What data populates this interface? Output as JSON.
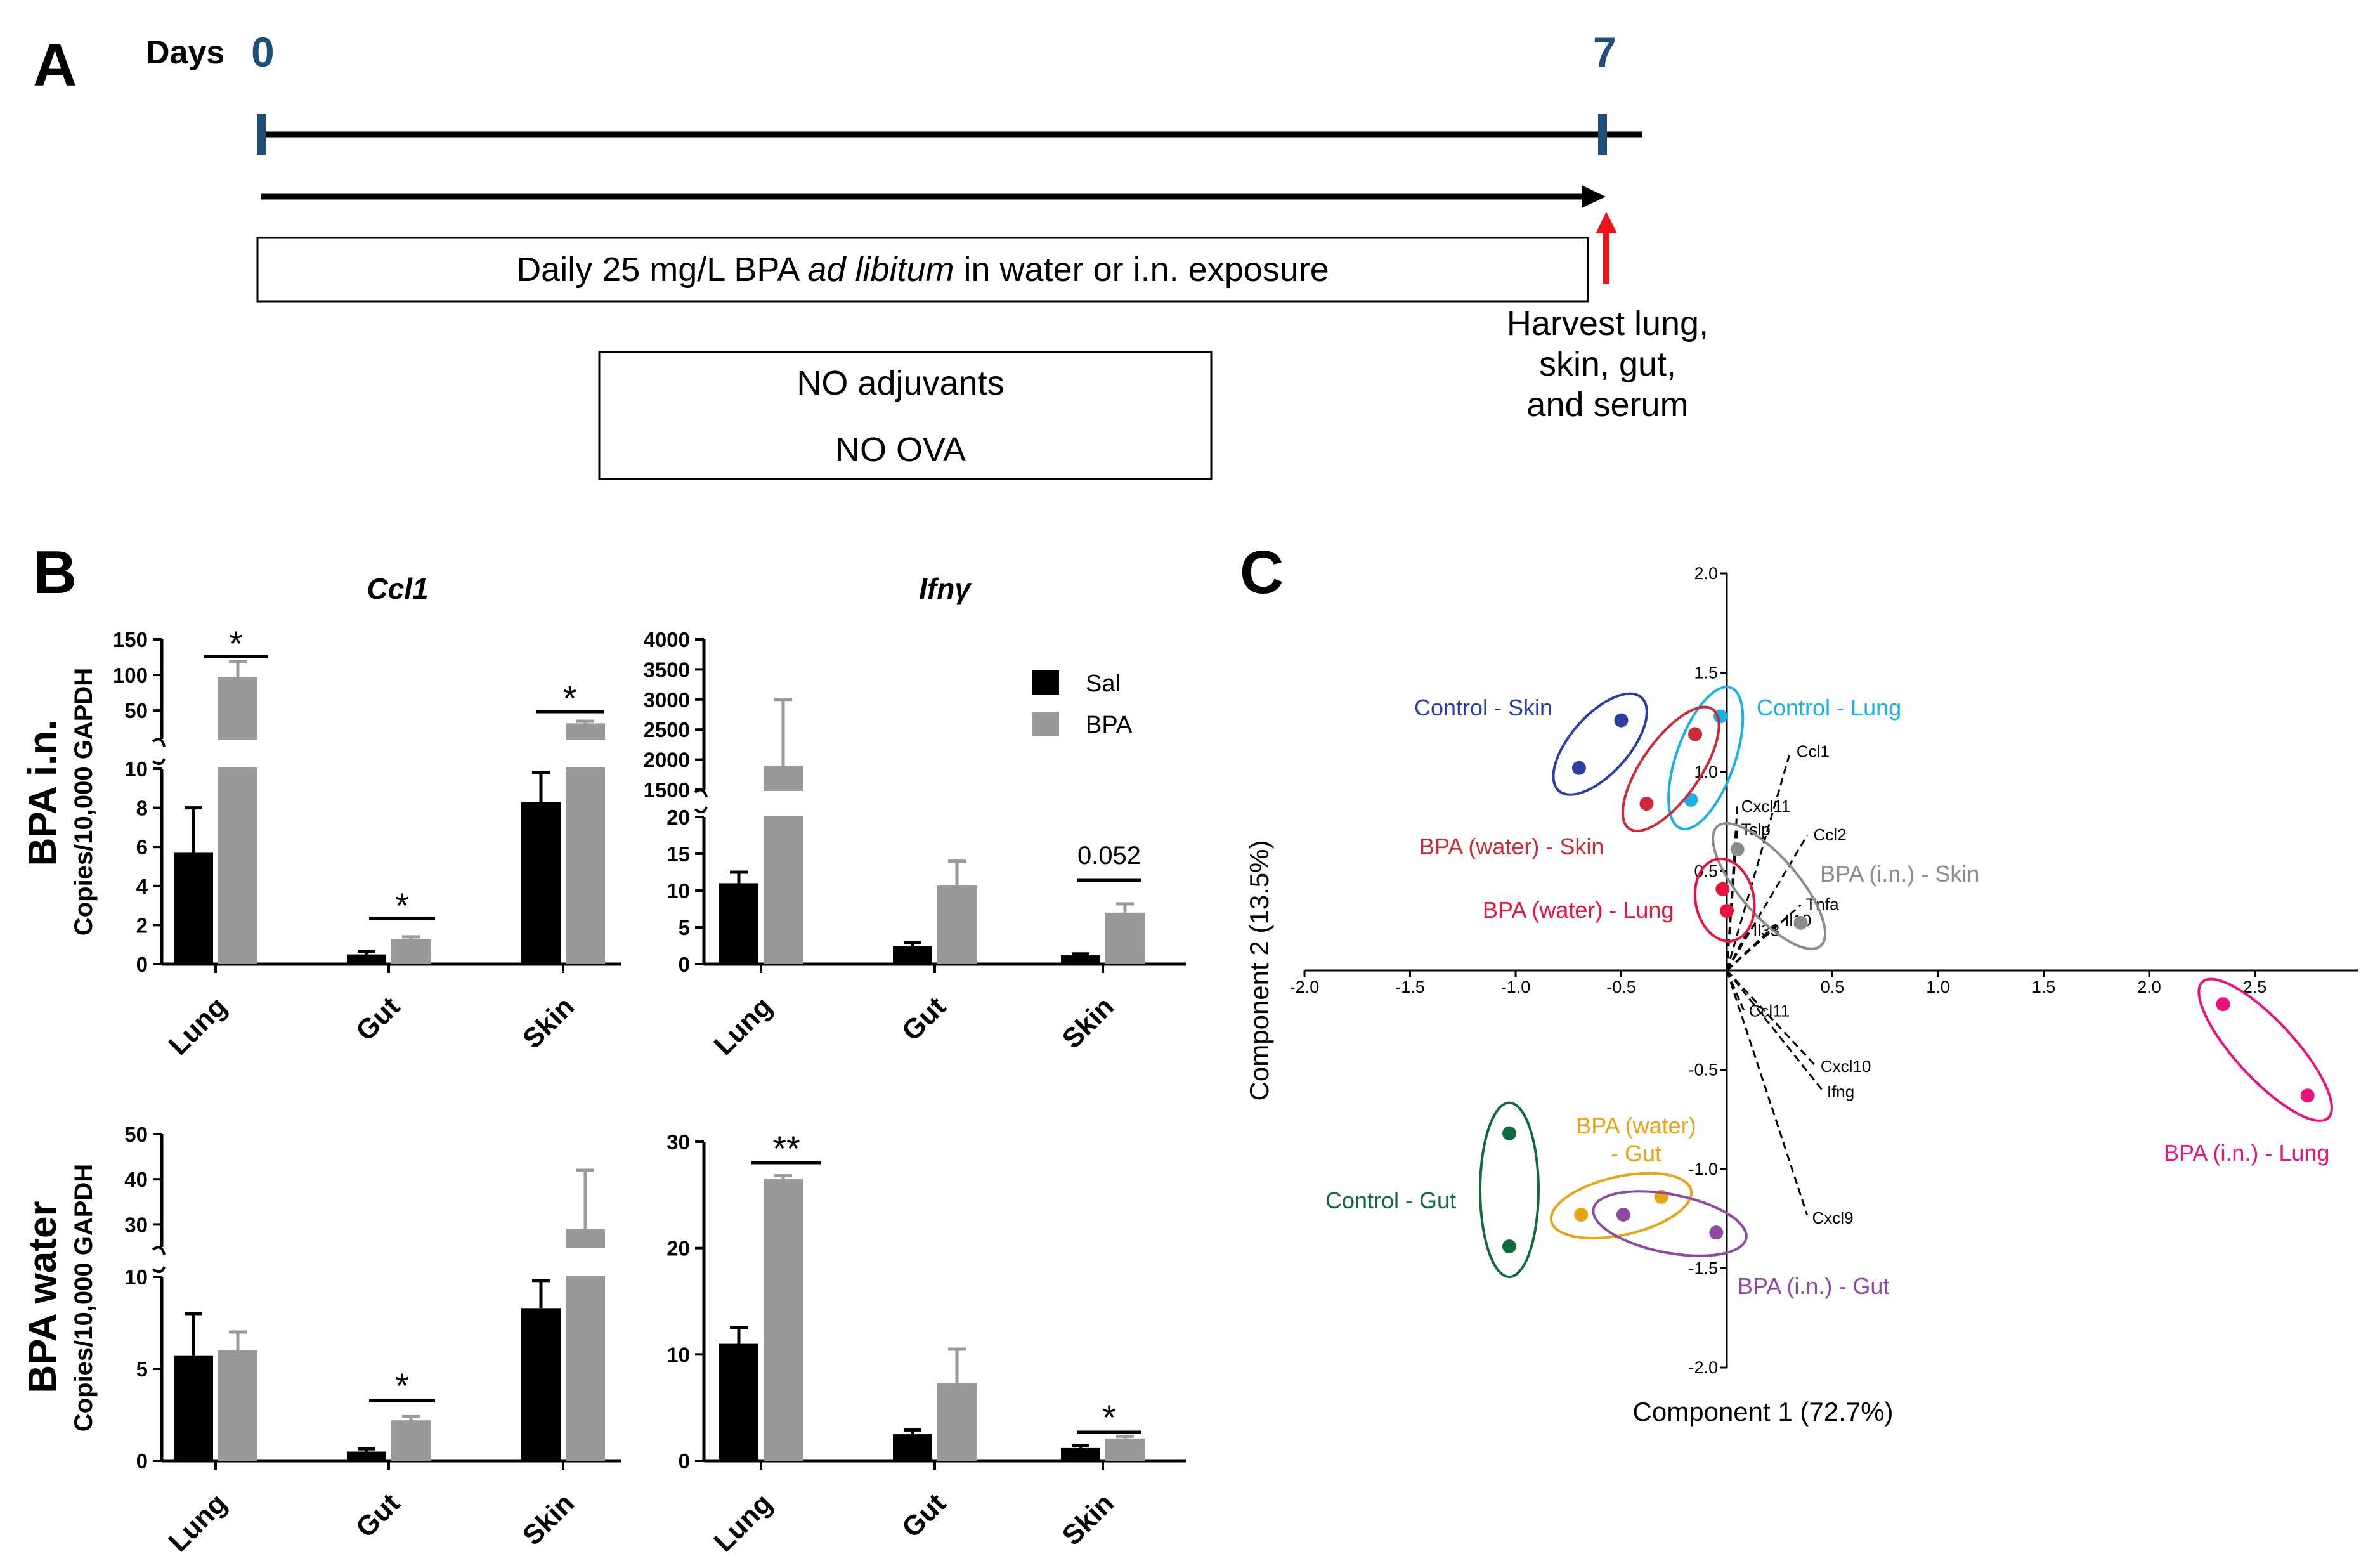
{
  "colors": {
    "sal": "#000000",
    "bpa": "#999999",
    "day_blue": "#1f4e79",
    "red_arrow": "#e8141b",
    "control_skin": "#2d3ea3",
    "control_lung": "#1ab0e3",
    "water_skin": "#cc2a36",
    "water_lung": "#e8143c",
    "in_skin": "#8c8c8c",
    "control_gut": "#0f6b3c",
    "water_gut": "#e8a317",
    "in_gut": "#8e4aa3",
    "in_lung": "#e8147a"
  },
  "panel_a": {
    "label": "A",
    "days_label": "Days",
    "day_start": "0",
    "day_end": "7",
    "treatment_text_1": "Daily 25 mg/L BPA ",
    "treatment_text_italic": "ad libitum",
    "treatment_text_2": " in water or i.n. exposure",
    "no_adjuvants": "NO adjuvants",
    "no_ova": "NO OVA",
    "harvest_lines": [
      "Harvest lung,",
      "skin, gut,",
      "and serum"
    ]
  },
  "panel_b": {
    "label": "B",
    "row_labels": [
      "BPA i.n.",
      "BPA water"
    ],
    "ylabel": "Copies/10,000 GAPDH",
    "legend": [
      "Sal",
      "BPA"
    ],
    "gene_titles": [
      "Ccl1",
      "Ifnγ"
    ]
  },
  "panel_c": {
    "label": "C",
    "xlabel": "Component 1 (72.7%)",
    "ylabel": "Component 2 (13.5%)",
    "group_labels": [
      "Control - Skin",
      "Control - Lung",
      "BPA (water) - Skin",
      "BPA (i.n.) - Skin",
      "BPA (water) - Lung",
      "Control - Gut",
      "BPA (i.n.) - Gut",
      "BPA (i.n.) - Lung"
    ],
    "water_gut_label": [
      "BPA (water)",
      "- Gut"
    ]
  },
  "chart_data": [
    {
      "type": "bar",
      "id": "ccl1_in",
      "title": "Ccl1",
      "row": "BPA i.n.",
      "categories": [
        "Lung",
        "Gut",
        "Skin"
      ],
      "series": [
        {
          "name": "Sal",
          "values": [
            5.7,
            0.5,
            8.3
          ],
          "errors": [
            2.3,
            0.15,
            1.5
          ]
        },
        {
          "name": "BPA",
          "values": [
            97,
            1.3,
            32
          ],
          "errors": [
            22,
            0.1,
            3
          ]
        }
      ],
      "broken_axis": {
        "lower": [
          0,
          10
        ],
        "upper": [
          10,
          150
        ]
      },
      "yticks_lower": [
        "0",
        "2",
        "4",
        "6",
        "8",
        "10"
      ],
      "yticks_upper": [
        "50",
        "100",
        "150"
      ],
      "annotations": [
        "*",
        "*",
        "*"
      ]
    },
    {
      "type": "bar",
      "id": "ifng_in",
      "title": "Ifnγ",
      "row": "BPA i.n.",
      "categories": [
        "Lung",
        "Gut",
        "Skin"
      ],
      "series": [
        {
          "name": "Sal",
          "values": [
            11,
            2.5,
            1.2
          ],
          "errors": [
            1.5,
            0.4,
            0.2
          ]
        },
        {
          "name": "BPA",
          "values": [
            1900,
            10.7,
            7
          ],
          "errors": [
            1100,
            3.3,
            1.2
          ]
        }
      ],
      "broken_axis": {
        "lower": [
          0,
          20
        ],
        "upper": [
          1500,
          4000
        ]
      },
      "yticks_lower": [
        "0",
        "5",
        "10",
        "15",
        "20"
      ],
      "yticks_upper": [
        "1500",
        "2000",
        "2500",
        "3000",
        "3500",
        "4000"
      ],
      "annotations": [
        "",
        "",
        "0.052"
      ]
    },
    {
      "type": "bar",
      "id": "ccl1_water",
      "title": "Ccl1",
      "row": "BPA water",
      "categories": [
        "Lung",
        "Gut",
        "Skin"
      ],
      "series": [
        {
          "name": "Sal",
          "values": [
            5.7,
            0.5,
            8.3
          ],
          "errors": [
            2.3,
            0.15,
            1.5
          ]
        },
        {
          "name": "BPA",
          "values": [
            6,
            2.2,
            29
          ],
          "errors": [
            1,
            0.2,
            13
          ]
        }
      ],
      "broken_axis": {
        "lower": [
          0,
          10
        ],
        "upper": [
          25,
          50
        ]
      },
      "yticks_lower": [
        "0",
        "5",
        "10"
      ],
      "yticks_upper": [
        "30",
        "40",
        "50"
      ],
      "annotations": [
        "",
        "*",
        ""
      ]
    },
    {
      "type": "bar",
      "id": "ifng_water",
      "title": "Ifnγ",
      "row": "BPA water",
      "categories": [
        "Lung",
        "Gut",
        "Skin"
      ],
      "series": [
        {
          "name": "Sal",
          "values": [
            11,
            2.5,
            1.2
          ],
          "errors": [
            1.5,
            0.4,
            0.2
          ]
        },
        {
          "name": "BPA",
          "values": [
            26.5,
            7.3,
            2.1
          ],
          "errors": [
            0.3,
            3.2,
            0.2
          ]
        }
      ],
      "ylim": [
        0,
        30
      ],
      "yticks": [
        "0",
        "10",
        "20",
        "30"
      ],
      "annotations": [
        "**",
        "",
        "*"
      ]
    },
    {
      "type": "scatter",
      "id": "pca_biplot",
      "xlabel": "Component 1 (72.7%)",
      "ylabel": "Component 2 (13.5%)",
      "xlim": [
        -2.0,
        3.0
      ],
      "ylim": [
        -2.0,
        2.0
      ],
      "xticks": [
        "-2.0",
        "-1.5",
        "-1.0",
        "-0.5",
        "0.5",
        "1.0",
        "1.5",
        "2.0",
        "2.5"
      ],
      "yticks": [
        "2.0",
        "1.5",
        "1.0",
        "0.5",
        "-0.5",
        "-1.0",
        "-1.5",
        "-2.0"
      ],
      "groups": [
        {
          "name": "Control - Skin",
          "color": "#2d3ea3",
          "points": [
            [
              -0.5,
              1.26
            ],
            [
              -0.7,
              1.02
            ]
          ]
        },
        {
          "name": "Control - Lung",
          "color": "#1ab0e3",
          "points": [
            [
              -0.03,
              1.28
            ],
            [
              -0.17,
              0.86
            ]
          ]
        },
        {
          "name": "BPA (water) - Skin",
          "color": "#cc2a36",
          "points": [
            [
              -0.15,
              1.19
            ],
            [
              -0.38,
              0.84
            ]
          ]
        },
        {
          "name": "BPA (i.n.) - Skin",
          "color": "#8c8c8c",
          "points": [
            [
              0.05,
              0.61
            ],
            [
              0.35,
              0.24
            ]
          ]
        },
        {
          "name": "BPA (water) - Lung",
          "color": "#e8143c",
          "points": [
            [
              -0.02,
              0.41
            ],
            [
              0.0,
              0.3
            ]
          ]
        },
        {
          "name": "Control - Gut",
          "color": "#0f6b3c",
          "points": [
            [
              -1.03,
              -0.82
            ],
            [
              -1.03,
              -1.39
            ]
          ]
        },
        {
          "name": "BPA (water) - Gut",
          "color": "#e8a317",
          "points": [
            [
              -0.69,
              -1.23
            ],
            [
              -0.31,
              -1.14
            ]
          ]
        },
        {
          "name": "BPA (i.n.) - Gut",
          "color": "#8e4aa3",
          "points": [
            [
              -0.49,
              -1.23
            ],
            [
              -0.05,
              -1.32
            ]
          ]
        },
        {
          "name": "BPA (i.n.) - Lung",
          "color": "#e8147a",
          "points": [
            [
              2.35,
              -0.17
            ],
            [
              2.75,
              -0.63
            ]
          ]
        }
      ],
      "loadings": [
        {
          "label": "Ccl1",
          "x": 0.3,
          "y": 1.1
        },
        {
          "label": "Cxcl11",
          "x": 0.05,
          "y": 0.83
        },
        {
          "label": "Tslp",
          "x": 0.05,
          "y": 0.72
        },
        {
          "label": "Ccl2",
          "x": 0.38,
          "y": 0.68
        },
        {
          "label": "Tnfa",
          "x": 0.35,
          "y": 0.33
        },
        {
          "label": "Il10",
          "x": 0.25,
          "y": 0.25
        },
        {
          "label": "Il33",
          "x": 0.1,
          "y": 0.2
        },
        {
          "label": "Ccl11",
          "x": 0.08,
          "y": -0.2
        },
        {
          "label": "Cxcl10",
          "x": 0.42,
          "y": -0.48
        },
        {
          "label": "Ifng",
          "x": 0.45,
          "y": -0.6
        },
        {
          "label": "Cxcl9",
          "x": 0.38,
          "y": -1.23
        }
      ]
    }
  ]
}
